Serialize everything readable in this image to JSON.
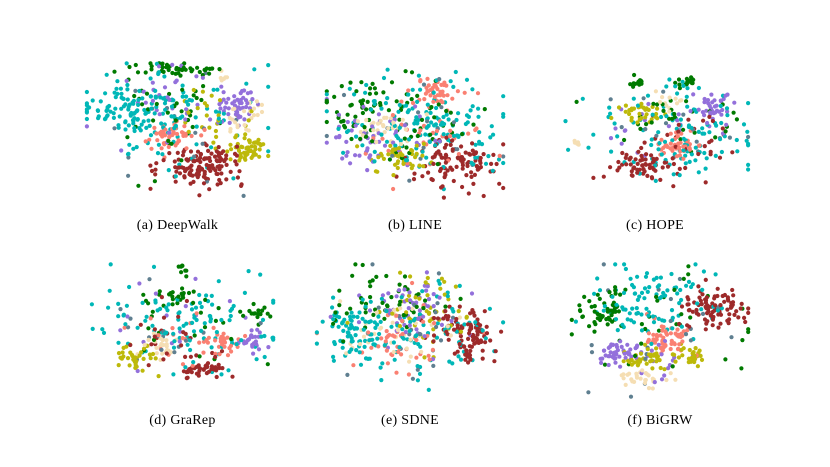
{
  "figure": {
    "panels": [
      {
        "label": "(a)",
        "name": "DeepWalk"
      },
      {
        "label": "(b)",
        "name": "LINE"
      },
      {
        "label": "(c)",
        "name": "HOPE"
      },
      {
        "label": "(d)",
        "name": "GraRep"
      },
      {
        "label": "(e)",
        "name": "SDNE"
      },
      {
        "label": "(f)",
        "name": "BiGRW"
      }
    ]
  },
  "chart_data": [
    {
      "type": "scatter",
      "panel": "(a) DeepWalk",
      "class_colors": [
        "#00b7b7",
        "#9d2a2a",
        "#007a00",
        "#9370db",
        "#fa8072",
        "#bdb90a",
        "#f5deb3",
        "#5f7f90"
      ],
      "clusters": [
        {
          "class": 1,
          "cx": 0.62,
          "cy": 0.75,
          "sx": 0.11,
          "sy": 0.08,
          "n": 130
        },
        {
          "class": 0,
          "cx": 0.28,
          "cy": 0.35,
          "sx": 0.14,
          "sy": 0.1,
          "n": 110
        },
        {
          "class": 0,
          "cx": 0.55,
          "cy": 0.4,
          "sx": 0.22,
          "sy": 0.22,
          "n": 70
        },
        {
          "class": 2,
          "cx": 0.5,
          "cy": 0.05,
          "sx": 0.14,
          "sy": 0.025,
          "n": 45
        },
        {
          "class": 2,
          "cx": 0.45,
          "cy": 0.38,
          "sx": 0.15,
          "sy": 0.18,
          "n": 40
        },
        {
          "class": 3,
          "cx": 0.83,
          "cy": 0.3,
          "sx": 0.06,
          "sy": 0.07,
          "n": 50
        },
        {
          "class": 3,
          "cx": 0.45,
          "cy": 0.3,
          "sx": 0.18,
          "sy": 0.15,
          "n": 30
        },
        {
          "class": 4,
          "cx": 0.47,
          "cy": 0.53,
          "sx": 0.06,
          "sy": 0.05,
          "n": 50
        },
        {
          "class": 5,
          "cx": 0.88,
          "cy": 0.62,
          "sx": 0.06,
          "sy": 0.05,
          "n": 55
        },
        {
          "class": 5,
          "cx": 0.68,
          "cy": 0.4,
          "sx": 0.12,
          "sy": 0.1,
          "n": 25
        },
        {
          "class": 6,
          "cx": 0.85,
          "cy": 0.4,
          "sx": 0.05,
          "sy": 0.06,
          "n": 25
        },
        {
          "class": 6,
          "cx": 0.75,
          "cy": 0.1,
          "sx": 0.02,
          "sy": 0.02,
          "n": 6
        },
        {
          "class": 7,
          "cx": 0.55,
          "cy": 0.45,
          "sx": 0.22,
          "sy": 0.2,
          "n": 15
        }
      ]
    },
    {
      "type": "scatter",
      "panel": "(b) LINE",
      "class_colors": [
        "#00b7b7",
        "#9d2a2a",
        "#007a00",
        "#9370db",
        "#fa8072",
        "#bdb90a",
        "#f5deb3",
        "#5f7f90"
      ],
      "clusters": [
        {
          "class": 0,
          "cx": 0.55,
          "cy": 0.45,
          "sx": 0.24,
          "sy": 0.18,
          "n": 150
        },
        {
          "class": 1,
          "cx": 0.72,
          "cy": 0.72,
          "sx": 0.12,
          "sy": 0.09,
          "n": 100
        },
        {
          "class": 2,
          "cx": 0.2,
          "cy": 0.35,
          "sx": 0.1,
          "sy": 0.1,
          "n": 50
        },
        {
          "class": 2,
          "cx": 0.52,
          "cy": 0.4,
          "sx": 0.18,
          "sy": 0.16,
          "n": 45
        },
        {
          "class": 3,
          "cx": 0.3,
          "cy": 0.55,
          "sx": 0.14,
          "sy": 0.12,
          "n": 55
        },
        {
          "class": 4,
          "cx": 0.62,
          "cy": 0.2,
          "sx": 0.06,
          "sy": 0.05,
          "n": 40
        },
        {
          "class": 4,
          "cx": 0.55,
          "cy": 0.5,
          "sx": 0.18,
          "sy": 0.16,
          "n": 35
        },
        {
          "class": 5,
          "cx": 0.42,
          "cy": 0.7,
          "sx": 0.08,
          "sy": 0.06,
          "n": 45
        },
        {
          "class": 6,
          "cx": 0.3,
          "cy": 0.45,
          "sx": 0.08,
          "sy": 0.07,
          "n": 35
        },
        {
          "class": 7,
          "cx": 0.5,
          "cy": 0.5,
          "sx": 0.25,
          "sy": 0.2,
          "n": 20
        }
      ]
    },
    {
      "type": "scatter",
      "panel": "(c) HOPE",
      "class_colors": [
        "#00b7b7",
        "#9d2a2a",
        "#007a00",
        "#9370db",
        "#fa8072",
        "#bdb90a",
        "#f5deb3",
        "#5f7f90"
      ],
      "clusters": [
        {
          "class": 0,
          "cx": 0.62,
          "cy": 0.5,
          "sx": 0.22,
          "sy": 0.2,
          "n": 110
        },
        {
          "class": 1,
          "cx": 0.42,
          "cy": 0.75,
          "sx": 0.09,
          "sy": 0.06,
          "n": 60
        },
        {
          "class": 1,
          "cx": 0.68,
          "cy": 0.55,
          "sx": 0.14,
          "sy": 0.14,
          "n": 30
        },
        {
          "class": 2,
          "cx": 0.4,
          "cy": 0.12,
          "sx": 0.03,
          "sy": 0.03,
          "n": 14
        },
        {
          "class": 2,
          "cx": 0.68,
          "cy": 0.1,
          "sx": 0.04,
          "sy": 0.03,
          "n": 16
        },
        {
          "class": 2,
          "cx": 0.6,
          "cy": 0.4,
          "sx": 0.16,
          "sy": 0.14,
          "n": 30
        },
        {
          "class": 3,
          "cx": 0.8,
          "cy": 0.3,
          "sx": 0.05,
          "sy": 0.06,
          "n": 35
        },
        {
          "class": 3,
          "cx": 0.55,
          "cy": 0.45,
          "sx": 0.16,
          "sy": 0.14,
          "n": 20
        },
        {
          "class": 4,
          "cx": 0.62,
          "cy": 0.57,
          "sx": 0.07,
          "sy": 0.06,
          "n": 45
        },
        {
          "class": 5,
          "cx": 0.43,
          "cy": 0.35,
          "sx": 0.07,
          "sy": 0.05,
          "n": 35
        },
        {
          "class": 6,
          "cx": 0.58,
          "cy": 0.25,
          "sx": 0.04,
          "sy": 0.04,
          "n": 12
        },
        {
          "class": 6,
          "cx": 0.08,
          "cy": 0.58,
          "sx": 0.02,
          "sy": 0.01,
          "n": 5
        },
        {
          "class": 7,
          "cx": 0.6,
          "cy": 0.45,
          "sx": 0.2,
          "sy": 0.18,
          "n": 15
        }
      ]
    },
    {
      "type": "scatter",
      "panel": "(d) GraRep",
      "class_colors": [
        "#00b7b7",
        "#9d2a2a",
        "#007a00",
        "#9370db",
        "#fa8072",
        "#bdb90a",
        "#f5deb3",
        "#5f7f90"
      ],
      "clusters": [
        {
          "class": 0,
          "cx": 0.55,
          "cy": 0.45,
          "sx": 0.24,
          "sy": 0.16,
          "n": 110
        },
        {
          "class": 1,
          "cx": 0.6,
          "cy": 0.78,
          "sx": 0.06,
          "sy": 0.05,
          "n": 45
        },
        {
          "class": 1,
          "cx": 0.4,
          "cy": 0.55,
          "sx": 0.15,
          "sy": 0.12,
          "n": 20
        },
        {
          "class": 2,
          "cx": 0.45,
          "cy": 0.25,
          "sx": 0.08,
          "sy": 0.04,
          "n": 22
        },
        {
          "class": 2,
          "cx": 0.5,
          "cy": 0.05,
          "sx": 0.02,
          "sy": 0.03,
          "n": 8
        },
        {
          "class": 2,
          "cx": 0.9,
          "cy": 0.4,
          "sx": 0.04,
          "sy": 0.03,
          "n": 15
        },
        {
          "class": 2,
          "cx": 0.5,
          "cy": 0.5,
          "sx": 0.18,
          "sy": 0.15,
          "n": 20
        },
        {
          "class": 3,
          "cx": 0.88,
          "cy": 0.58,
          "sx": 0.04,
          "sy": 0.04,
          "n": 25
        },
        {
          "class": 3,
          "cx": 0.55,
          "cy": 0.5,
          "sx": 0.18,
          "sy": 0.15,
          "n": 15
        },
        {
          "class": 4,
          "cx": 0.7,
          "cy": 0.58,
          "sx": 0.05,
          "sy": 0.05,
          "n": 30
        },
        {
          "class": 4,
          "cx": 0.45,
          "cy": 0.5,
          "sx": 0.15,
          "sy": 0.12,
          "n": 15
        },
        {
          "class": 5,
          "cx": 0.25,
          "cy": 0.68,
          "sx": 0.05,
          "sy": 0.05,
          "n": 35
        },
        {
          "class": 6,
          "cx": 0.38,
          "cy": 0.6,
          "sx": 0.05,
          "sy": 0.05,
          "n": 25
        },
        {
          "class": 7,
          "cx": 0.5,
          "cy": 0.5,
          "sx": 0.22,
          "sy": 0.18,
          "n": 15
        }
      ]
    },
    {
      "type": "scatter",
      "panel": "(e) SDNE",
      "class_colors": [
        "#00b7b7",
        "#9d2a2a",
        "#007a00",
        "#9370db",
        "#fa8072",
        "#bdb90a",
        "#f5deb3",
        "#5f7f90"
      ],
      "clusters": [
        {
          "class": 0,
          "cx": 0.2,
          "cy": 0.5,
          "sx": 0.08,
          "sy": 0.1,
          "n": 70
        },
        {
          "class": 0,
          "cx": 0.55,
          "cy": 0.5,
          "sx": 0.22,
          "sy": 0.18,
          "n": 90
        },
        {
          "class": 1,
          "cx": 0.8,
          "cy": 0.55,
          "sx": 0.08,
          "sy": 0.1,
          "n": 100
        },
        {
          "class": 2,
          "cx": 0.4,
          "cy": 0.3,
          "sx": 0.18,
          "sy": 0.12,
          "n": 55
        },
        {
          "class": 3,
          "cx": 0.5,
          "cy": 0.35,
          "sx": 0.15,
          "sy": 0.12,
          "n": 55
        },
        {
          "class": 4,
          "cx": 0.45,
          "cy": 0.55,
          "sx": 0.15,
          "sy": 0.12,
          "n": 50
        },
        {
          "class": 5,
          "cx": 0.6,
          "cy": 0.35,
          "sx": 0.12,
          "sy": 0.12,
          "n": 50
        },
        {
          "class": 6,
          "cx": 0.45,
          "cy": 0.48,
          "sx": 0.15,
          "sy": 0.12,
          "n": 40
        },
        {
          "class": 7,
          "cx": 0.5,
          "cy": 0.5,
          "sx": 0.25,
          "sy": 0.2,
          "n": 20
        }
      ]
    },
    {
      "type": "scatter",
      "panel": "(f) BiGRW",
      "class_colors": [
        "#00b7b7",
        "#9d2a2a",
        "#007a00",
        "#9370db",
        "#fa8072",
        "#bdb90a",
        "#f5deb3",
        "#5f7f90"
      ],
      "clusters": [
        {
          "class": 0,
          "cx": 0.45,
          "cy": 0.3,
          "sx": 0.16,
          "sy": 0.14,
          "n": 100
        },
        {
          "class": 1,
          "cx": 0.8,
          "cy": 0.35,
          "sx": 0.09,
          "sy": 0.08,
          "n": 90
        },
        {
          "class": 2,
          "cx": 0.2,
          "cy": 0.35,
          "sx": 0.06,
          "sy": 0.08,
          "n": 45
        },
        {
          "class": 2,
          "cx": 0.5,
          "cy": 0.45,
          "sx": 0.25,
          "sy": 0.25,
          "n": 35
        },
        {
          "class": 3,
          "cx": 0.26,
          "cy": 0.68,
          "sx": 0.05,
          "sy": 0.04,
          "n": 40
        },
        {
          "class": 3,
          "cx": 0.5,
          "cy": 0.7,
          "sx": 0.1,
          "sy": 0.08,
          "n": 20
        },
        {
          "class": 4,
          "cx": 0.55,
          "cy": 0.55,
          "sx": 0.06,
          "sy": 0.06,
          "n": 55
        },
        {
          "class": 5,
          "cx": 0.42,
          "cy": 0.72,
          "sx": 0.06,
          "sy": 0.05,
          "n": 40
        },
        {
          "class": 5,
          "cx": 0.68,
          "cy": 0.68,
          "sx": 0.04,
          "sy": 0.04,
          "n": 25
        },
        {
          "class": 6,
          "cx": 0.42,
          "cy": 0.85,
          "sx": 0.07,
          "sy": 0.03,
          "n": 30
        },
        {
          "class": 7,
          "cx": 0.5,
          "cy": 0.5,
          "sx": 0.25,
          "sy": 0.25,
          "n": 20
        }
      ]
    }
  ]
}
